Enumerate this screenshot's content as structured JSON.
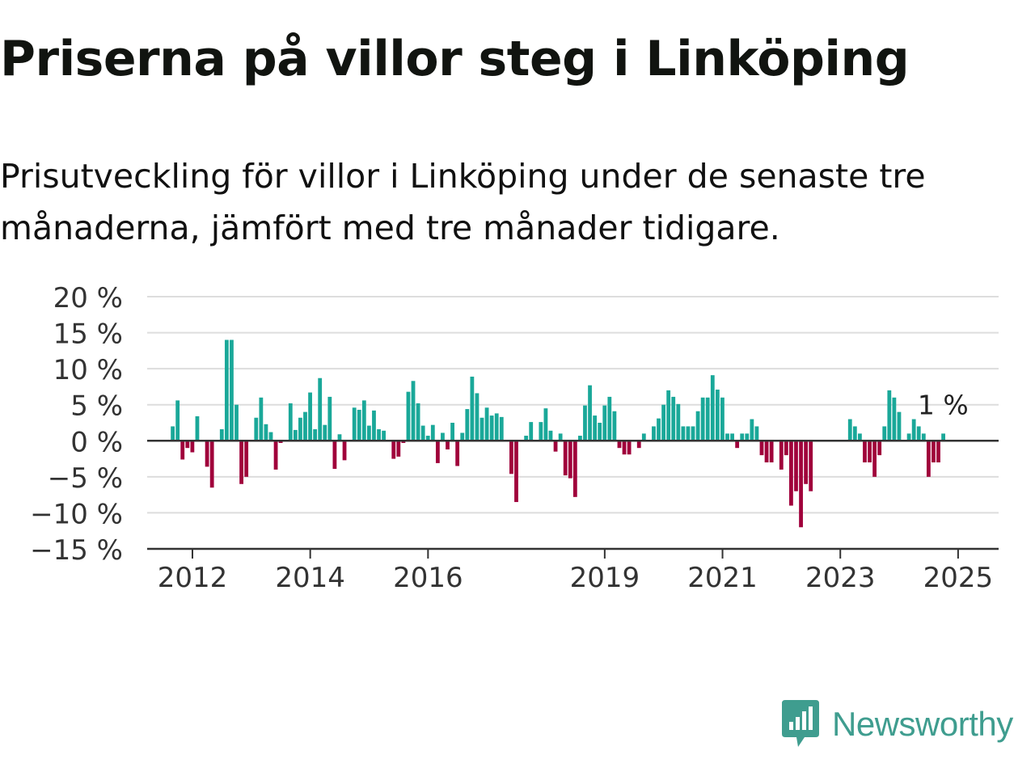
{
  "title": "Priserna på villor steg i Linköping",
  "subtitle": "Prisutveckling för villor i Linköping under de senaste tre månaderna, jämfört med tre månader tidigare.",
  "brand": "Newsworthy",
  "brand_icon": "newsworthy-logo-icon",
  "colors": {
    "positive": "#1aa899",
    "negative": "#a0003b",
    "grid": "#dddddd",
    "axis": "#333333",
    "brand": "#3f9d8f"
  },
  "chart_data": {
    "type": "bar",
    "title": "Priserna på villor steg i Linköping",
    "xlabel": "",
    "ylabel": "",
    "ylim": [
      -15,
      20
    ],
    "y_ticks": [
      20,
      15,
      10,
      5,
      0,
      -5,
      -10,
      -15
    ],
    "y_tick_labels": [
      "20 %",
      "15 %",
      "10 %",
      "5 %",
      "0 %",
      "−5 %",
      "−10 %",
      "−15 %"
    ],
    "x_ticks": [
      2012,
      2014,
      2016,
      2019,
      2021,
      2023,
      2025
    ],
    "x_tick_labels": [
      "2012",
      "2014",
      "2016",
      "2019",
      "2021",
      "2023",
      "2025"
    ],
    "grid": true,
    "start": "2011-09",
    "frequency": "monthly",
    "annotation": {
      "text": "1 %",
      "target": "last"
    },
    "values": [
      2,
      5.6,
      -2.6,
      -1,
      -1.6,
      3.4,
      0,
      -3.6,
      -6.5,
      0,
      1.6,
      14,
      14,
      5,
      -6,
      -5,
      0,
      3.2,
      6,
      2.3,
      1.2,
      -4,
      -0.3,
      0,
      5.2,
      1.5,
      3.2,
      4,
      6.7,
      1.6,
      8.7,
      2.2,
      6.1,
      -3.9,
      0.9,
      -2.7,
      0,
      4.6,
      4.3,
      5.6,
      2.1,
      4.2,
      1.6,
      1.4,
      0,
      -2.5,
      -2.2,
      -0.3,
      6.8,
      8.3,
      5.2,
      2.1,
      0.7,
      2.2,
      -3.1,
      1.1,
      -1.2,
      2.5,
      -3.5,
      1.1,
      4.4,
      8.9,
      6.6,
      3.2,
      4.6,
      3.5,
      3.8,
      3.3,
      0,
      -4.6,
      -8.5,
      0,
      0.7,
      2.6,
      0,
      2.6,
      4.5,
      1.4,
      -1.5,
      1,
      -4.8,
      -5.2,
      -7.8,
      0.7,
      4.9,
      7.7,
      3.5,
      2.5,
      4.9,
      6.1,
      4.1,
      -1,
      -1.9,
      -1.9,
      0,
      -1,
      1,
      0,
      2,
      3.1,
      5,
      7,
      6.1,
      5.1,
      2,
      2,
      2,
      4.1,
      6,
      6,
      9.1,
      7.1,
      6,
      1,
      1,
      -1,
      1,
      1,
      3,
      2,
      -2,
      -3,
      -3,
      0,
      -4,
      -2,
      -9,
      -7,
      -12,
      -6,
      -7,
      0,
      0,
      0,
      0,
      0,
      0,
      0,
      3,
      2,
      1,
      -3,
      -3,
      -5,
      -2,
      2,
      7,
      6,
      4,
      0,
      1,
      3,
      2,
      1,
      -5,
      -3,
      -3,
      1
    ]
  }
}
